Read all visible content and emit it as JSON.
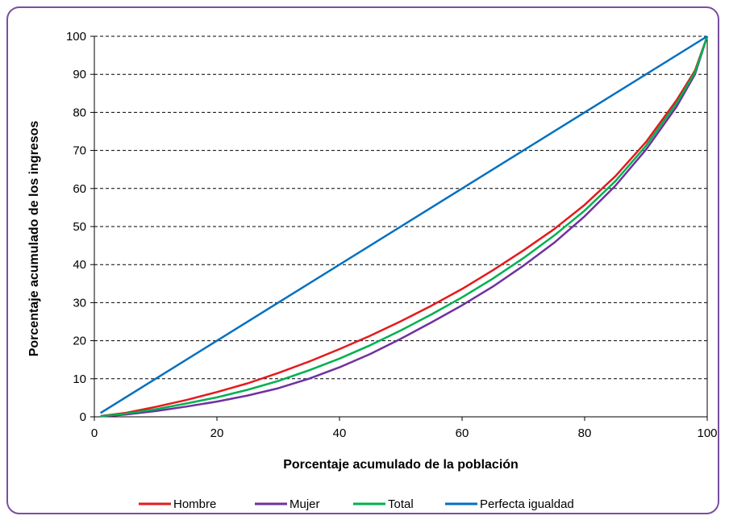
{
  "chart_data": {
    "type": "line",
    "xlabel": "Porcentaje acumulado de la población",
    "ylabel": "Porcentaje acumulado de los ingresos",
    "xlim": [
      0,
      100
    ],
    "ylim": [
      0,
      100
    ],
    "xticks": [
      0,
      20,
      40,
      60,
      80,
      100
    ],
    "yticks": [
      0,
      10,
      20,
      30,
      40,
      50,
      60,
      70,
      80,
      90,
      100
    ],
    "grid": "horizontal-dashed",
    "legend": "bottom",
    "series": [
      {
        "name": "Hombre",
        "color": "#e41a1c",
        "x": [
          1,
          5,
          10,
          15,
          20,
          25,
          30,
          35,
          40,
          45,
          50,
          55,
          60,
          65,
          70,
          75,
          80,
          85,
          90,
          95,
          98,
          100
        ],
        "y": [
          0.2,
          1,
          2.6,
          4.4,
          6.5,
          8.8,
          11.5,
          14.5,
          17.8,
          21.3,
          25.1,
          29.2,
          33.6,
          38.5,
          43.7,
          49.3,
          55.7,
          63.2,
          72.2,
          83.2,
          91,
          100
        ]
      },
      {
        "name": "Mujer",
        "color": "#7030a0",
        "x": [
          1,
          5,
          10,
          15,
          20,
          25,
          30,
          35,
          40,
          45,
          50,
          55,
          60,
          65,
          70,
          75,
          80,
          85,
          90,
          95,
          98,
          100
        ],
        "y": [
          0.1,
          0.6,
          1.5,
          2.7,
          4,
          5.6,
          7.5,
          10,
          13,
          16.5,
          20.5,
          24.8,
          29.3,
          34.2,
          39.7,
          45.7,
          52.7,
          60.7,
          70.2,
          81.5,
          90,
          100
        ]
      },
      {
        "name": "Total",
        "color": "#00b050",
        "x": [
          1,
          5,
          10,
          15,
          20,
          25,
          30,
          35,
          40,
          45,
          50,
          55,
          60,
          65,
          70,
          75,
          80,
          85,
          90,
          95,
          98,
          100
        ],
        "y": [
          0.15,
          0.8,
          2,
          3.5,
          5.1,
          7.1,
          9.4,
          12.2,
          15.3,
          18.8,
          22.7,
          26.9,
          31.4,
          36.3,
          41.7,
          47.6,
          54.2,
          61.9,
          71.2,
          82.4,
          90.5,
          100
        ]
      },
      {
        "name": "Perfecta igualdad",
        "color": "#0070c0",
        "x": [
          1,
          100
        ],
        "y": [
          1,
          100
        ]
      }
    ]
  }
}
